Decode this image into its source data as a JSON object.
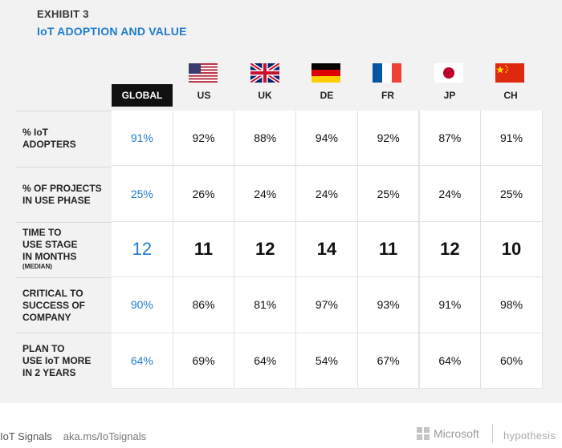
{
  "header": {
    "exhibit": "EXHIBIT 3",
    "title": "IoT ADOPTION AND VALUE"
  },
  "columns": {
    "global": "GLOBAL",
    "countries": [
      "US",
      "UK",
      "DE",
      "FR",
      "JP",
      "CH"
    ]
  },
  "flags": [
    "us-flag-icon",
    "uk-flag-icon",
    "germany-flag-icon",
    "france-flag-icon",
    "japan-flag-icon",
    "china-flag-icon"
  ],
  "rows": [
    {
      "label": "% IoT\nADOPTERS",
      "values": [
        "91%",
        "92%",
        "88%",
        "94%",
        "92%",
        "87%",
        "91%"
      ]
    },
    {
      "label": "% OF PROJECTS\nIN USE PHASE",
      "values": [
        "25%",
        "26%",
        "24%",
        "24%",
        "25%",
        "24%",
        "25%"
      ]
    },
    {
      "label": "TIME TO\nUSE STAGE\nIN MONTHS",
      "sublabel": "(MEDIAN)",
      "values": [
        "12",
        "11",
        "12",
        "14",
        "11",
        "12",
        "10"
      ]
    },
    {
      "label": "CRITICAL TO\nSUCCESS OF\nCOMPANY",
      "values": [
        "90%",
        "86%",
        "81%",
        "97%",
        "93%",
        "91%",
        "98%"
      ]
    },
    {
      "label": "PLAN TO\nUSE IoT MORE\nIN 2 YEARS",
      "values": [
        "64%",
        "69%",
        "64%",
        "54%",
        "67%",
        "64%",
        "60%"
      ]
    }
  ],
  "footer": {
    "brand": "IoT Signals",
    "url": "aka.ms/IoTsignals",
    "microsoft": "Microsoft",
    "hypothesis": "hypothesis"
  },
  "colors": {
    "accent": "#1f7ccf",
    "global_head_bg": "#111111",
    "panel_bg": "#f2f2f2"
  }
}
